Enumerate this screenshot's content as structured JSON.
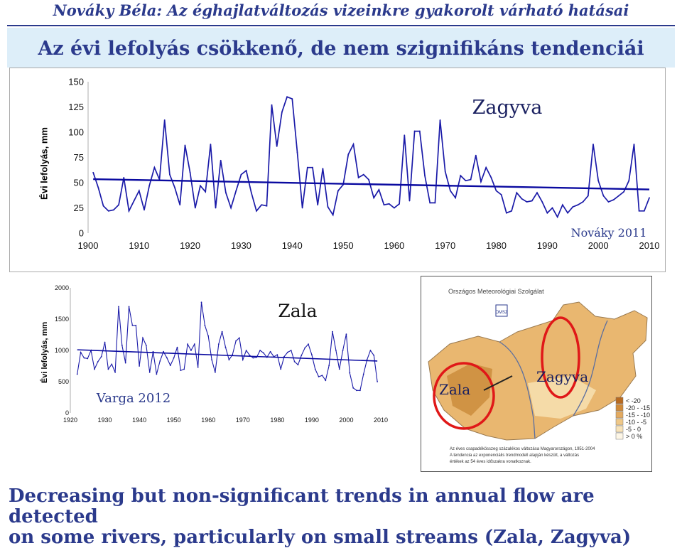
{
  "header": {
    "title": "Nováky Béla: Az éghajlatváltozás vizeinkre gyakorolt várható hatásai"
  },
  "banner": {
    "title": "Az évi lefolyás csökkenő, de nem szignifikáns tendenciái"
  },
  "colors": {
    "series": "#1a1aa8",
    "trend": "#0a0aa0",
    "heading": "#2b3a8c",
    "circle": "#e01818"
  },
  "chart_data": [
    {
      "type": "line",
      "title": "Zagyva",
      "ylabel": "Évi lefolyás, mm",
      "xlabel": "",
      "annotation": "Nováky 2011",
      "xlim": [
        1900,
        2010
      ],
      "ylim": [
        0,
        150
      ],
      "xticks": [
        "1900",
        "1910",
        "1920",
        "1930",
        "1940",
        "1950",
        "1960",
        "1970",
        "1980",
        "1990",
        "2000",
        "2010"
      ],
      "yticks": [
        "0",
        "25",
        "50",
        "75",
        "100",
        "125",
        "150"
      ],
      "grid": false,
      "x": [
        1901,
        1902,
        1903,
        1904,
        1905,
        1906,
        1907,
        1908,
        1909,
        1910,
        1911,
        1912,
        1913,
        1914,
        1915,
        1916,
        1917,
        1918,
        1919,
        1920,
        1921,
        1922,
        1923,
        1924,
        1925,
        1926,
        1927,
        1928,
        1929,
        1930,
        1931,
        1932,
        1933,
        1934,
        1935,
        1936,
        1937,
        1938,
        1939,
        1940,
        1941,
        1942,
        1943,
        1944,
        1945,
        1946,
        1947,
        1948,
        1949,
        1950,
        1951,
        1952,
        1953,
        1954,
        1955,
        1956,
        1957,
        1958,
        1959,
        1960,
        1961,
        1962,
        1963,
        1964,
        1965,
        1966,
        1967,
        1968,
        1969,
        1970,
        1971,
        1972,
        1973,
        1974,
        1975,
        1976,
        1977,
        1978,
        1979,
        1980,
        1981,
        1982,
        1983,
        1984,
        1985,
        1986,
        1987,
        1988,
        1989,
        1990,
        1991,
        1992,
        1993,
        1994,
        1995,
        1996,
        1997,
        1998,
        1999,
        2000,
        2001,
        2002,
        2003,
        2004,
        2005,
        2006,
        2007,
        2008,
        2009,
        2010
      ],
      "values": [
        60,
        45,
        27,
        22,
        23,
        28,
        55,
        22,
        32,
        42,
        23,
        47,
        65,
        53,
        112,
        58,
        45,
        28,
        87,
        60,
        25,
        47,
        41,
        88,
        25,
        72,
        40,
        25,
        42,
        58,
        62,
        40,
        22,
        28,
        27,
        127,
        86,
        120,
        135,
        133,
        80,
        25,
        65,
        65,
        28,
        64,
        26,
        18,
        42,
        48,
        78,
        88,
        55,
        58,
        53,
        35,
        43,
        28,
        29,
        25,
        29,
        97,
        32,
        101,
        101,
        57,
        30,
        30,
        112,
        61,
        42,
        35,
        57,
        52,
        53,
        77,
        51,
        65,
        55,
        42,
        38,
        20,
        22,
        40,
        34,
        31,
        32,
        40,
        31,
        20,
        25,
        16,
        28,
        20,
        26,
        28,
        31,
        37,
        88,
        52,
        37,
        31,
        33,
        37,
        41,
        52,
        88,
        22,
        22,
        35
      ],
      "trend": [
        53.5,
        43.3
      ]
    },
    {
      "type": "line",
      "title": "Zala",
      "ylabel": "Évi lefolyás, mm",
      "xlabel": "",
      "annotation": "Varga 2012",
      "xlim": [
        1920,
        2010
      ],
      "ylim": [
        0,
        2000
      ],
      "xticks": [
        "1920",
        "1930",
        "1940",
        "1950",
        "1960",
        "1970",
        "1980",
        "1990",
        "2000",
        "2010"
      ],
      "yticks": [
        "0",
        "500",
        "1000",
        "1500",
        "2000"
      ],
      "grid": false,
      "x": [
        1922,
        1923,
        1924,
        1925,
        1926,
        1927,
        1928,
        1929,
        1930,
        1931,
        1932,
        1933,
        1934,
        1935,
        1936,
        1937,
        1938,
        1939,
        1940,
        1941,
        1942,
        1943,
        1944,
        1945,
        1946,
        1947,
        1948,
        1949,
        1950,
        1951,
        1952,
        1953,
        1954,
        1955,
        1956,
        1957,
        1958,
        1959,
        1960,
        1961,
        1962,
        1963,
        1964,
        1965,
        1966,
        1967,
        1968,
        1969,
        1970,
        1971,
        1972,
        1973,
        1974,
        1975,
        1976,
        1977,
        1978,
        1979,
        1980,
        1981,
        1982,
        1983,
        1984,
        1985,
        1986,
        1987,
        1988,
        1989,
        1990,
        1991,
        1992,
        1993,
        1994,
        1995,
        1996,
        1997,
        1998,
        1999,
        2000,
        2001,
        2002,
        2003,
        2004,
        2005,
        2006,
        2007,
        2008,
        2009
      ],
      "values": [
        620,
        970,
        880,
        870,
        1000,
        700,
        820,
        900,
        1130,
        700,
        780,
        650,
        1700,
        1080,
        800,
        1700,
        1400,
        1400,
        750,
        1200,
        1080,
        650,
        980,
        620,
        830,
        980,
        880,
        760,
        880,
        1050,
        680,
        700,
        1100,
        1000,
        1100,
        730,
        1770,
        1400,
        1230,
        850,
        650,
        1100,
        1300,
        1050,
        850,
        930,
        1150,
        1200,
        850,
        1000,
        920,
        880,
        890,
        1000,
        960,
        890,
        980,
        900,
        930,
        700,
        900,
        970,
        1000,
        820,
        770,
        920,
        1040,
        1100,
        930,
        700,
        580,
        600,
        520,
        760,
        1300,
        1000,
        700,
        1000,
        1260,
        640,
        400,
        360,
        360,
        620,
        850,
        1000,
        920,
        500
      ],
      "trend": [
        1010,
        830
      ]
    }
  ],
  "map": {
    "institution": "Országos Meteorológiai Szolgálat",
    "logo": "OMSZ",
    "labels": [
      "Zala",
      "Zagyva"
    ],
    "legend": [
      {
        "label": "< -20",
        "color": "#b86a20"
      },
      {
        "label": "-20 - -15",
        "color": "#d08a38"
      },
      {
        "label": "-15 - -10",
        "color": "#e3aa60"
      },
      {
        "label": "-10 - -5",
        "color": "#efc888"
      },
      {
        "label": "-5 - 0",
        "color": "#f7e2b8"
      },
      {
        "label": "> 0 %",
        "color": "#fdf6e6"
      }
    ],
    "caption_lines": [
      "Az éves csapadékösszeg százalékos változása Magyarországon, 1951-2004",
      "A tendencia az exponenciális trendmodell alapján készült, a változás",
      "értékek az 54 éves időszakra vonatkoznak."
    ]
  },
  "footer": {
    "line1": "Decreasing but non-significant trends in annual flow are detected",
    "line2": "on some rivers, particularly on small streams (Zala, Zagyva)"
  }
}
